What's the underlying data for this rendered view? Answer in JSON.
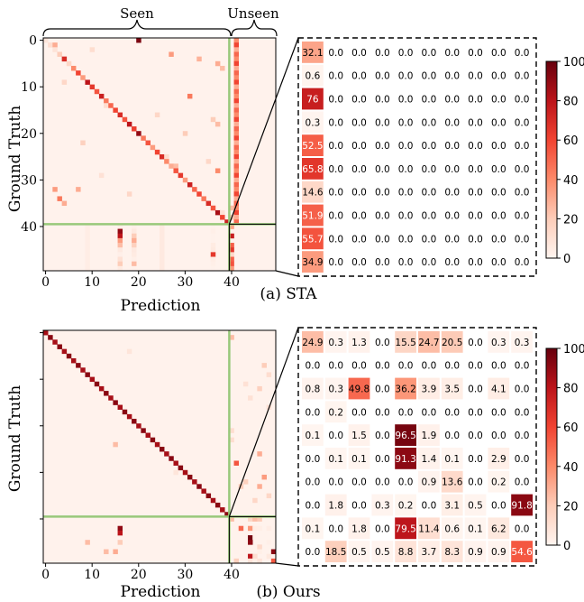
{
  "figure": {
    "seen_label": "Seen",
    "unseen_label": "Unseen",
    "colorbar_ticks": [
      0,
      20,
      40,
      60,
      80,
      100
    ]
  },
  "chart_data": [
    {
      "type": "heatmap",
      "caption": "(a) STA",
      "xlabel": "Prediction",
      "ylabel": "Ground Truth",
      "x_ticks": [
        0,
        10,
        20,
        30,
        40
      ],
      "y_ticks": [
        0,
        10,
        20,
        30,
        40
      ],
      "n": 50,
      "zoom_matrix": [
        [
          32.1,
          0.0,
          0.0,
          0.0,
          0.0,
          0.0,
          0.0,
          0.0,
          0.0,
          0.0
        ],
        [
          0.6,
          0.0,
          0.0,
          0.0,
          0.0,
          0.0,
          0.0,
          0.0,
          0.0,
          0.0
        ],
        [
          76,
          0.0,
          0.0,
          0.0,
          0.0,
          0.0,
          0.0,
          0.0,
          0.0,
          0.0
        ],
        [
          0.3,
          0.0,
          0.0,
          0.0,
          0.0,
          0.0,
          0.0,
          0.0,
          0.0,
          0.0
        ],
        [
          52.5,
          0.0,
          0.0,
          0.0,
          0.0,
          0.0,
          0.0,
          0.0,
          0.0,
          0.0
        ],
        [
          65.8,
          0.0,
          0.0,
          0.0,
          0.0,
          0.0,
          0.0,
          0.0,
          0.0,
          0.0
        ],
        [
          14.6,
          0.0,
          0.0,
          0.0,
          0.0,
          0.0,
          0.0,
          0.0,
          0.0,
          0.0
        ],
        [
          51.9,
          0.0,
          0.0,
          0.0,
          0.0,
          0.0,
          0.0,
          0.0,
          0.0,
          0.0
        ],
        [
          55.7,
          0.0,
          0.0,
          0.0,
          0.0,
          0.0,
          0.0,
          0.0,
          0.0,
          0.0
        ],
        [
          34.9,
          0.0,
          0.0,
          0.0,
          0.0,
          0.0,
          0.0,
          0.0,
          0.0,
          0.0
        ]
      ],
      "colorbar": {
        "min": 0,
        "max": 100,
        "ticks": [
          0,
          20,
          40,
          60,
          80,
          100
        ]
      }
    },
    {
      "type": "heatmap",
      "caption": "(b) Ours",
      "xlabel": "Prediction",
      "ylabel": "Ground Truth",
      "x_ticks": [
        0,
        10,
        20,
        30,
        40
      ],
      "y_ticks": [],
      "n": 50,
      "zoom_matrix": [
        [
          24.9,
          0.3,
          1.3,
          0.0,
          15.5,
          24.7,
          20.5,
          0.0,
          0.3,
          0.3
        ],
        [
          0.0,
          0.0,
          0.0,
          0.0,
          0.0,
          0.0,
          0.0,
          0.0,
          0.0,
          0.0
        ],
        [
          0.8,
          0.3,
          49.8,
          0.0,
          36.2,
          3.9,
          3.5,
          0.0,
          4.1,
          0.0
        ],
        [
          0.0,
          0.2,
          0.0,
          0.0,
          0.0,
          0.0,
          0.0,
          0.0,
          0.0,
          0.0
        ],
        [
          0.1,
          0.0,
          1.5,
          0.0,
          96.5,
          1.9,
          0.0,
          0.0,
          0.0,
          0.0
        ],
        [
          0.0,
          0.1,
          0.1,
          0.0,
          91.3,
          1.4,
          0.1,
          0.0,
          2.9,
          0.0
        ],
        [
          0.0,
          0.0,
          0.0,
          0.0,
          0.0,
          0.9,
          13.6,
          0.0,
          0.2,
          0.0
        ],
        [
          0.0,
          1.8,
          0.0,
          0.3,
          0.2,
          0.0,
          3.1,
          0.5,
          0.0,
          91.8
        ],
        [
          0.1,
          0.0,
          1.8,
          0.0,
          79.5,
          11.4,
          0.6,
          0.1,
          6.2,
          0.0
        ],
        [
          0.0,
          18.5,
          0.5,
          0.5,
          8.8,
          3.7,
          8.3,
          0.9,
          0.9,
          54.6
        ]
      ],
      "colorbar": {
        "min": 0,
        "max": 100,
        "ticks": [
          0,
          20,
          40,
          60,
          80,
          100
        ]
      }
    }
  ]
}
